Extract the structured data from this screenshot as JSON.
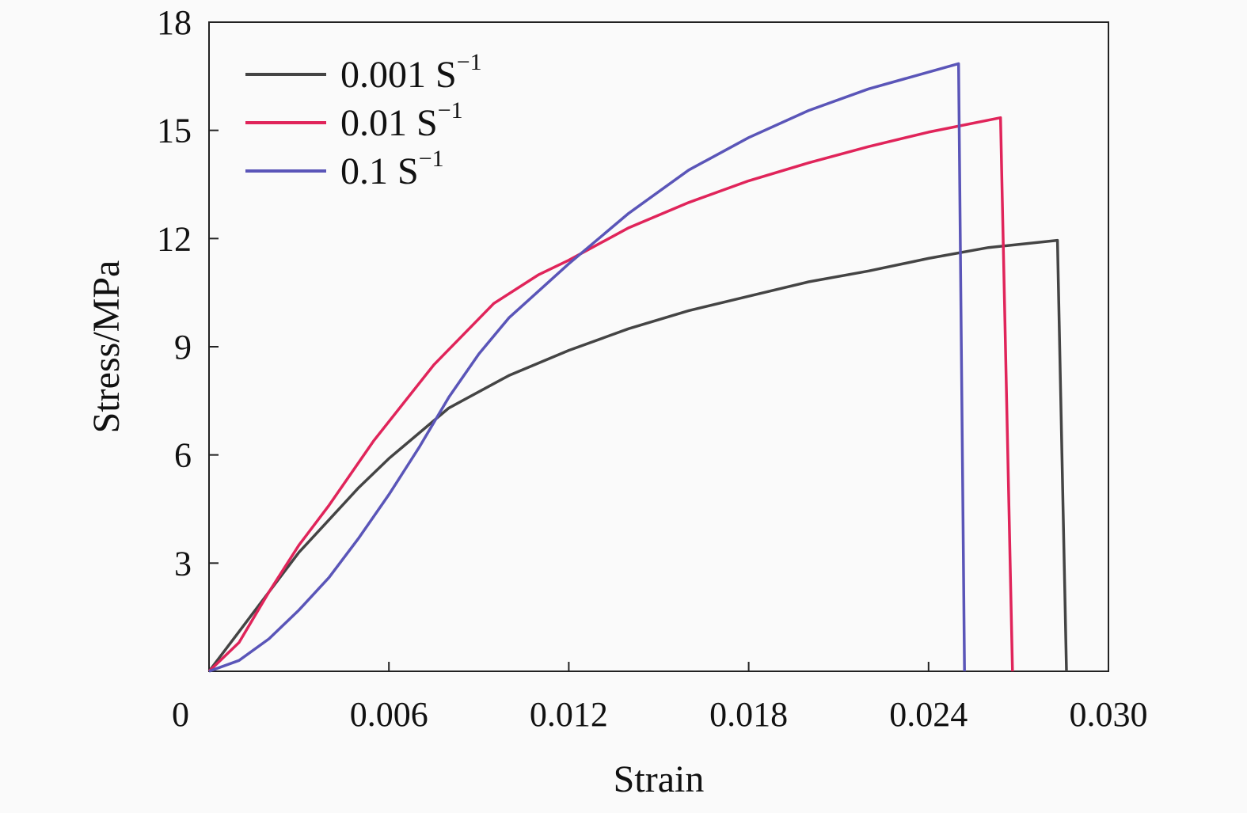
{
  "chart_data": {
    "type": "line",
    "title": "",
    "xlabel": "Strain",
    "ylabel": "Stress/MPa",
    "xlim": [
      0,
      0.03
    ],
    "ylim": [
      0,
      18
    ],
    "xticks": [
      0.006,
      0.012,
      0.018,
      0.024,
      0.03
    ],
    "xtick_labels": [
      "0.006",
      "0.012",
      "0.018",
      "0.024",
      "0.030"
    ],
    "yticks": [
      3,
      6,
      9,
      12,
      15,
      18
    ],
    "ytick_labels": [
      "3",
      "6",
      "9",
      "12",
      "15",
      "18"
    ],
    "origin_label": "0",
    "grid": false,
    "legend_placement": "top-left",
    "series": [
      {
        "name": "0.001 S",
        "superscript": "−1",
        "color": "#444444",
        "x": [
          0,
          0.001,
          0.002,
          0.003,
          0.004,
          0.005,
          0.006,
          0.008,
          0.01,
          0.012,
          0.014,
          0.016,
          0.018,
          0.02,
          0.022,
          0.024,
          0.026,
          0.0283,
          0.0286
        ],
        "y": [
          0,
          1.1,
          2.2,
          3.3,
          4.2,
          5.1,
          5.9,
          7.3,
          8.2,
          8.9,
          9.5,
          10.0,
          10.4,
          10.8,
          11.1,
          11.45,
          11.75,
          11.95,
          0
        ]
      },
      {
        "name": "0.01 S",
        "superscript": "−1",
        "color": "#e0245a",
        "x": [
          0,
          0.001,
          0.002,
          0.003,
          0.004,
          0.0055,
          0.0075,
          0.0095,
          0.011,
          0.012,
          0.014,
          0.016,
          0.018,
          0.02,
          0.022,
          0.024,
          0.0264,
          0.0268
        ],
        "y": [
          0,
          0.8,
          2.2,
          3.5,
          4.6,
          6.4,
          8.5,
          10.2,
          11.0,
          11.4,
          12.3,
          13.0,
          13.6,
          14.1,
          14.55,
          14.95,
          15.35,
          0
        ]
      },
      {
        "name": "0.1 S",
        "superscript": "−1",
        "color": "#5a55b8",
        "x": [
          0,
          0.001,
          0.002,
          0.003,
          0.004,
          0.005,
          0.006,
          0.007,
          0.008,
          0.009,
          0.01,
          0.012,
          0.014,
          0.016,
          0.018,
          0.02,
          0.022,
          0.025,
          0.0252
        ],
        "y": [
          0,
          0.3,
          0.9,
          1.7,
          2.6,
          3.7,
          4.9,
          6.2,
          7.6,
          8.8,
          9.8,
          11.3,
          12.7,
          13.9,
          14.8,
          15.55,
          16.15,
          16.85,
          0
        ]
      }
    ]
  }
}
